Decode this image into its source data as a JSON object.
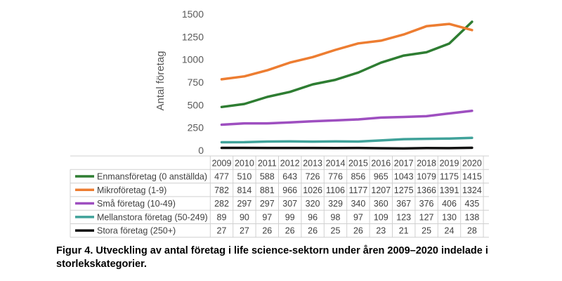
{
  "chart_data": {
    "type": "line",
    "ylabel": "Antal företag",
    "ylim": [
      0,
      1500
    ],
    "yticks": [
      0,
      250,
      500,
      750,
      1000,
      1250,
      1500
    ],
    "grid": false,
    "legend_position": "data-table-left",
    "x": [
      "2009",
      "2010",
      "2011",
      "2012",
      "2013",
      "2014",
      "2015",
      "2016",
      "2017",
      "2018",
      "2019",
      "2020"
    ],
    "series": [
      {
        "name": "Enmansföretag (0 anställda)",
        "color": "#2e7d32",
        "values": [
          477,
          510,
          588,
          643,
          726,
          776,
          856,
          965,
          1043,
          1079,
          1175,
          1415
        ]
      },
      {
        "name": "Mikroföretag (1-9)",
        "color": "#ed7d31",
        "values": [
          782,
          814,
          881,
          966,
          1026,
          1106,
          1177,
          1207,
          1275,
          1366,
          1391,
          1324
        ]
      },
      {
        "name": "Små företag (10-49)",
        "color": "#9e4fc0",
        "values": [
          282,
          297,
          297,
          307,
          320,
          329,
          340,
          360,
          367,
          376,
          406,
          435
        ]
      },
      {
        "name": "Mellanstora företag (50-249)",
        "color": "#40a29a",
        "values": [
          89,
          90,
          97,
          99,
          96,
          98,
          97,
          109,
          123,
          127,
          130,
          138
        ]
      },
      {
        "name": "Stora företag (250+)",
        "color": "#111111",
        "values": [
          27,
          27,
          26,
          26,
          26,
          25,
          26,
          23,
          21,
          25,
          24,
          28
        ]
      }
    ]
  },
  "caption": "Figur 4. Utveckling av antal företag i life science-sektorn under åren 2009–2020 indelade i storlekskategorier."
}
